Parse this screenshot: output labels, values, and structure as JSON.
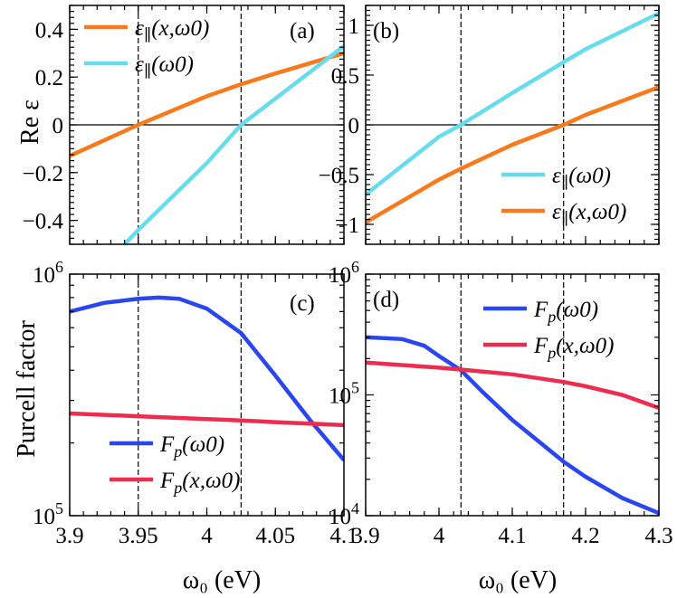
{
  "figure": {
    "ylabel_top": "Re ε",
    "ylabel_bottom": "Purcell factor",
    "xlabel_left": "ω₀ (eV)",
    "xlabel_right": "ω₀ (eV)"
  },
  "colors": {
    "orange": "#f97a1c",
    "cyan": "#66dced",
    "blue": "#2a46f0",
    "red": "#ee2c4f"
  },
  "chart_data": [
    {
      "id": "a",
      "panel_label": "(a)",
      "type": "line",
      "xlabel": "",
      "ylabel": "Re ε",
      "xlim": [
        3.9,
        4.1
      ],
      "ylim": [
        -0.5,
        0.5
      ],
      "yscale": "linear",
      "xticks": [
        3.9,
        3.95,
        4.0,
        4.05,
        4.1
      ],
      "xtick_labels": [
        "",
        "",
        "",
        "",
        ""
      ],
      "yticks": [
        -0.4,
        -0.2,
        0,
        0.2,
        0.4
      ],
      "ytick_labels": [
        "−0.4",
        "−0.2",
        "0",
        "0.2",
        "0.4"
      ],
      "zero_line": true,
      "vlines": [
        3.95,
        4.025
      ],
      "legend_position": "top-left",
      "series": [
        {
          "name": "ε∥(x,ω0)",
          "color": "#f97a1c",
          "x": [
            3.9,
            3.95,
            4.0,
            4.025,
            4.05,
            4.1
          ],
          "y": [
            -0.13,
            0.0,
            0.12,
            0.17,
            0.215,
            0.3
          ]
        },
        {
          "name": "ε∥(ω0)",
          "color": "#66dced",
          "x": [
            3.94,
            3.95,
            4.0,
            4.025,
            4.05,
            4.1
          ],
          "y": [
            -0.5,
            -0.44,
            -0.16,
            0.0,
            0.11,
            0.33
          ]
        }
      ]
    },
    {
      "id": "b",
      "panel_label": "(b)",
      "type": "line",
      "xlabel": "",
      "ylabel": "",
      "xlim": [
        3.9,
        4.3
      ],
      "ylim": [
        -1.2,
        1.2
      ],
      "yscale": "linear",
      "xticks": [
        3.9,
        4.0,
        4.1,
        4.2,
        4.3
      ],
      "xtick_labels": [
        "",
        "",
        "",
        "",
        ""
      ],
      "yticks": [
        -1,
        -0.5,
        0,
        0.5,
        1
      ],
      "ytick_labels": [
        "−1",
        "−0.5",
        "0",
        "0.5",
        "1"
      ],
      "zero_line": true,
      "vlines": [
        4.03,
        4.17
      ],
      "legend_position": "bottom-right",
      "series": [
        {
          "name": "ε∥(ω0)",
          "color": "#66dced",
          "x": [
            3.9,
            4.0,
            4.03,
            4.1,
            4.17,
            4.2,
            4.3
          ],
          "y": [
            -0.7,
            -0.12,
            0.0,
            0.32,
            0.63,
            0.76,
            1.12
          ]
        },
        {
          "name": "ε∥(x,ω0)",
          "color": "#f97a1c",
          "x": [
            3.9,
            4.0,
            4.03,
            4.1,
            4.17,
            4.2,
            4.3
          ],
          "y": [
            -0.98,
            -0.55,
            -0.44,
            -0.2,
            0.0,
            0.1,
            0.38
          ]
        }
      ]
    },
    {
      "id": "c",
      "panel_label": "(c)",
      "type": "line",
      "xlabel": "ω₀ (eV)",
      "ylabel": "Purcell factor",
      "xlim": [
        3.9,
        4.1
      ],
      "ylim": [
        100000,
        1000000
      ],
      "yscale": "log",
      "xticks": [
        3.9,
        3.95,
        4.0,
        4.05,
        4.1
      ],
      "xtick_labels": [
        "3.9",
        "3.95",
        "4",
        "4.05",
        "4.1"
      ],
      "yticks": [
        100000,
        1000000
      ],
      "ytick_labels": [
        "10⁵",
        "10⁶"
      ],
      "zero_line": false,
      "vlines": [
        3.95,
        4.025
      ],
      "legend_position": "bottom-left",
      "series": [
        {
          "name": "Fp(ω0)",
          "color": "#2a46f0",
          "x": [
            3.9,
            3.925,
            3.95,
            3.965,
            3.98,
            4.0,
            4.025,
            4.05,
            4.075,
            4.1
          ],
          "y": [
            700000,
            760000,
            790000,
            800000,
            790000,
            720000,
            570000,
            380000,
            250000,
            170000
          ]
        },
        {
          "name": "Fp(x,ω0)",
          "color": "#ee2c4f",
          "x": [
            3.9,
            3.95,
            4.0,
            4.025,
            4.05,
            4.1
          ],
          "y": [
            265000,
            258000,
            251000,
            248000,
            244000,
            237000
          ]
        }
      ]
    },
    {
      "id": "d",
      "panel_label": "(d)",
      "type": "line",
      "xlabel": "ω₀ (eV)",
      "ylabel": "",
      "xlim": [
        3.9,
        4.3
      ],
      "ylim": [
        10000,
        1000000
      ],
      "yscale": "log",
      "xticks": [
        3.9,
        4.0,
        4.1,
        4.2,
        4.3
      ],
      "xtick_labels": [
        "3.9",
        "4",
        "4.1",
        "4.2",
        "4.3"
      ],
      "yticks": [
        10000,
        100000,
        1000000
      ],
      "ytick_labels": [
        "10⁴",
        "10⁵",
        "10⁶"
      ],
      "zero_line": false,
      "vlines": [
        4.03,
        4.17
      ],
      "legend_position": "top-right",
      "series": [
        {
          "name": "Fp(ω0)",
          "color": "#2a46f0",
          "x": [
            3.9,
            3.95,
            3.98,
            4.0,
            4.03,
            4.06,
            4.1,
            4.17,
            4.2,
            4.25,
            4.3
          ],
          "y": [
            300000,
            290000,
            255000,
            210000,
            160000,
            105000,
            62000,
            28000,
            21000,
            14000,
            10500
          ]
        },
        {
          "name": "Fp(x,ω0)",
          "color": "#ee2c4f",
          "x": [
            3.9,
            4.0,
            4.03,
            4.1,
            4.17,
            4.2,
            4.25,
            4.3
          ],
          "y": [
            185000,
            168000,
            162000,
            148000,
            128000,
            118000,
            100000,
            78000
          ]
        }
      ]
    }
  ]
}
